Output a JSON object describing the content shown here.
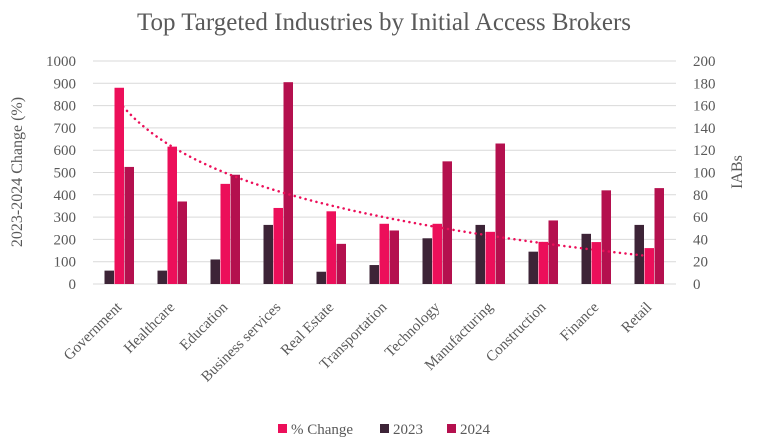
{
  "chart_data": {
    "type": "bar",
    "title": "Top Targeted Industries by Initial Access Brokers",
    "ylabel": "2023-2024 Change (%)",
    "y2label": "IABs",
    "ylim": [
      0,
      1000
    ],
    "y2lim": [
      0,
      200
    ],
    "yticks": [
      "0",
      "100",
      "200",
      "300",
      "400",
      "500",
      "600",
      "700",
      "800",
      "900",
      "1000"
    ],
    "y2ticks": [
      "0",
      "20",
      "40",
      "60",
      "80",
      "100",
      "120",
      "140",
      "160",
      "180",
      "200"
    ],
    "grid": true,
    "legend_position": "bottom",
    "categories": [
      "Government",
      "Healthcare",
      "Education",
      "Business services",
      "Real Estate",
      "Transportation",
      "Technology",
      "Manufacturing",
      "Construction",
      "Finance",
      "Retail"
    ],
    "series": [
      {
        "name": "2023",
        "axis": "right",
        "color": "#3d2437",
        "values": [
          12,
          12,
          22,
          53,
          11,
          17,
          41,
          53,
          29,
          45,
          53
        ]
      },
      {
        "name": "% Change",
        "axis": "left",
        "color": "#ec0f5a",
        "values": [
          880,
          616,
          449,
          341,
          326,
          270,
          270,
          234,
          189,
          188,
          161
        ]
      },
      {
        "name": "2024",
        "axis": "right",
        "color": "#b4104e",
        "values": [
          105,
          74,
          98,
          181,
          36,
          48,
          110,
          126,
          57,
          84,
          86
        ]
      }
    ],
    "legend_order": [
      "% Change",
      "2023",
      "2024"
    ],
    "trendline": {
      "series": "% Change",
      "type": "logarithmic",
      "style": "dotted",
      "color": "#ec0f5a"
    }
  }
}
